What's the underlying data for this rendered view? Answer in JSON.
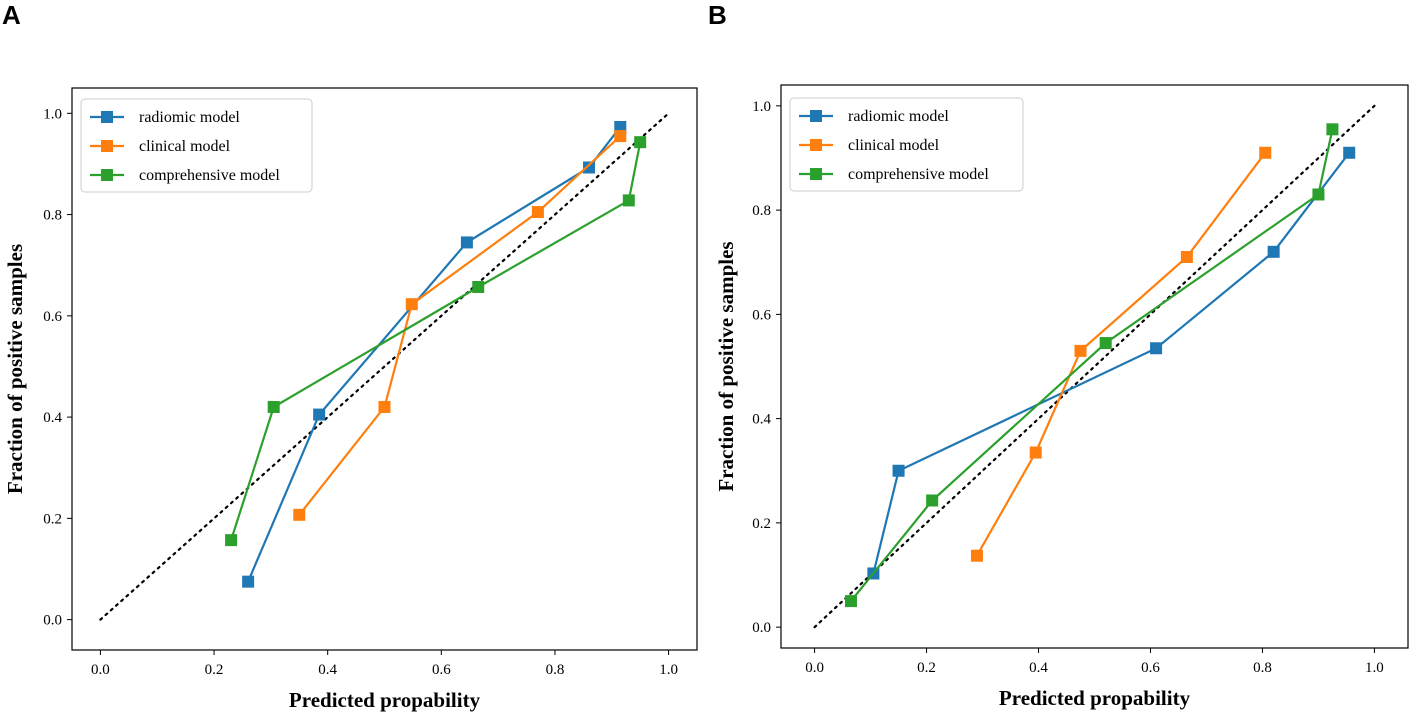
{
  "chart_data": [
    {
      "panel": "A",
      "type": "line",
      "title": "",
      "xlabel": "Predicted propability",
      "ylabel": "Fraction of positive samples",
      "xlim": [
        -0.05,
        1.05
      ],
      "ylim": [
        -0.06,
        1.05
      ],
      "xticks": [
        0.0,
        0.2,
        0.4,
        0.6,
        0.8,
        1.0
      ],
      "yticks": [
        0.0,
        0.2,
        0.4,
        0.6,
        0.8,
        1.0
      ],
      "xtick_labels": [
        "0.0",
        "0.2",
        "0.4",
        "0.6",
        "0.8",
        "1.0"
      ],
      "ytick_labels": [
        "0.0",
        "0.2",
        "0.4",
        "0.6",
        "0.8",
        "1.0"
      ],
      "legend_position": "top-left",
      "reference_line": {
        "x": [
          0,
          1
        ],
        "y": [
          0,
          1
        ],
        "style": "dotted",
        "color": "#000000"
      },
      "series": [
        {
          "name": "radiomic model",
          "color": "#1f77b4",
          "x": [
            0.26,
            0.385,
            0.645,
            0.86,
            0.915
          ],
          "y": [
            0.075,
            0.405,
            0.745,
            0.893,
            0.973
          ]
        },
        {
          "name": "clinical model",
          "color": "#ff7f0e",
          "x": [
            0.35,
            0.5,
            0.548,
            0.77,
            0.915
          ],
          "y": [
            0.207,
            0.42,
            0.623,
            0.805,
            0.955
          ]
        },
        {
          "name": "comprehensive model",
          "color": "#2ca02c",
          "x": [
            0.23,
            0.305,
            0.665,
            0.93,
            0.95
          ],
          "y": [
            0.157,
            0.42,
            0.657,
            0.828,
            0.943
          ]
        }
      ]
    },
    {
      "panel": "B",
      "type": "line",
      "title": "",
      "xlabel": "Predicted propability",
      "ylabel": "Fraction of positive samples",
      "xlim": [
        -0.06,
        1.06
      ],
      "ylim": [
        -0.04,
        1.04
      ],
      "xticks": [
        0.0,
        0.2,
        0.4,
        0.6,
        0.8,
        1.0
      ],
      "yticks": [
        0.0,
        0.2,
        0.4,
        0.6,
        0.8,
        1.0
      ],
      "xtick_labels": [
        "0.0",
        "0.2",
        "0.4",
        "0.6",
        "0.8",
        "1.0"
      ],
      "ytick_labels": [
        "0.0",
        "0.2",
        "0.4",
        "0.6",
        "0.8",
        "1.0"
      ],
      "legend_position": "top-left",
      "reference_line": {
        "x": [
          0,
          1
        ],
        "y": [
          0,
          1
        ],
        "style": "dotted",
        "color": "#000000"
      },
      "series": [
        {
          "name": "radiomic model",
          "color": "#1f77b4",
          "x": [
            0.105,
            0.15,
            0.61,
            0.82,
            0.955
          ],
          "y": [
            0.103,
            0.3,
            0.535,
            0.72,
            0.91
          ]
        },
        {
          "name": "clinical model",
          "color": "#ff7f0e",
          "x": [
            0.29,
            0.395,
            0.475,
            0.665,
            0.805
          ],
          "y": [
            0.137,
            0.335,
            0.53,
            0.71,
            0.91
          ]
        },
        {
          "name": "comprehensive model",
          "color": "#2ca02c",
          "x": [
            0.065,
            0.21,
            0.52,
            0.9,
            0.925
          ],
          "y": [
            0.05,
            0.243,
            0.545,
            0.83,
            0.955
          ]
        }
      ]
    }
  ]
}
